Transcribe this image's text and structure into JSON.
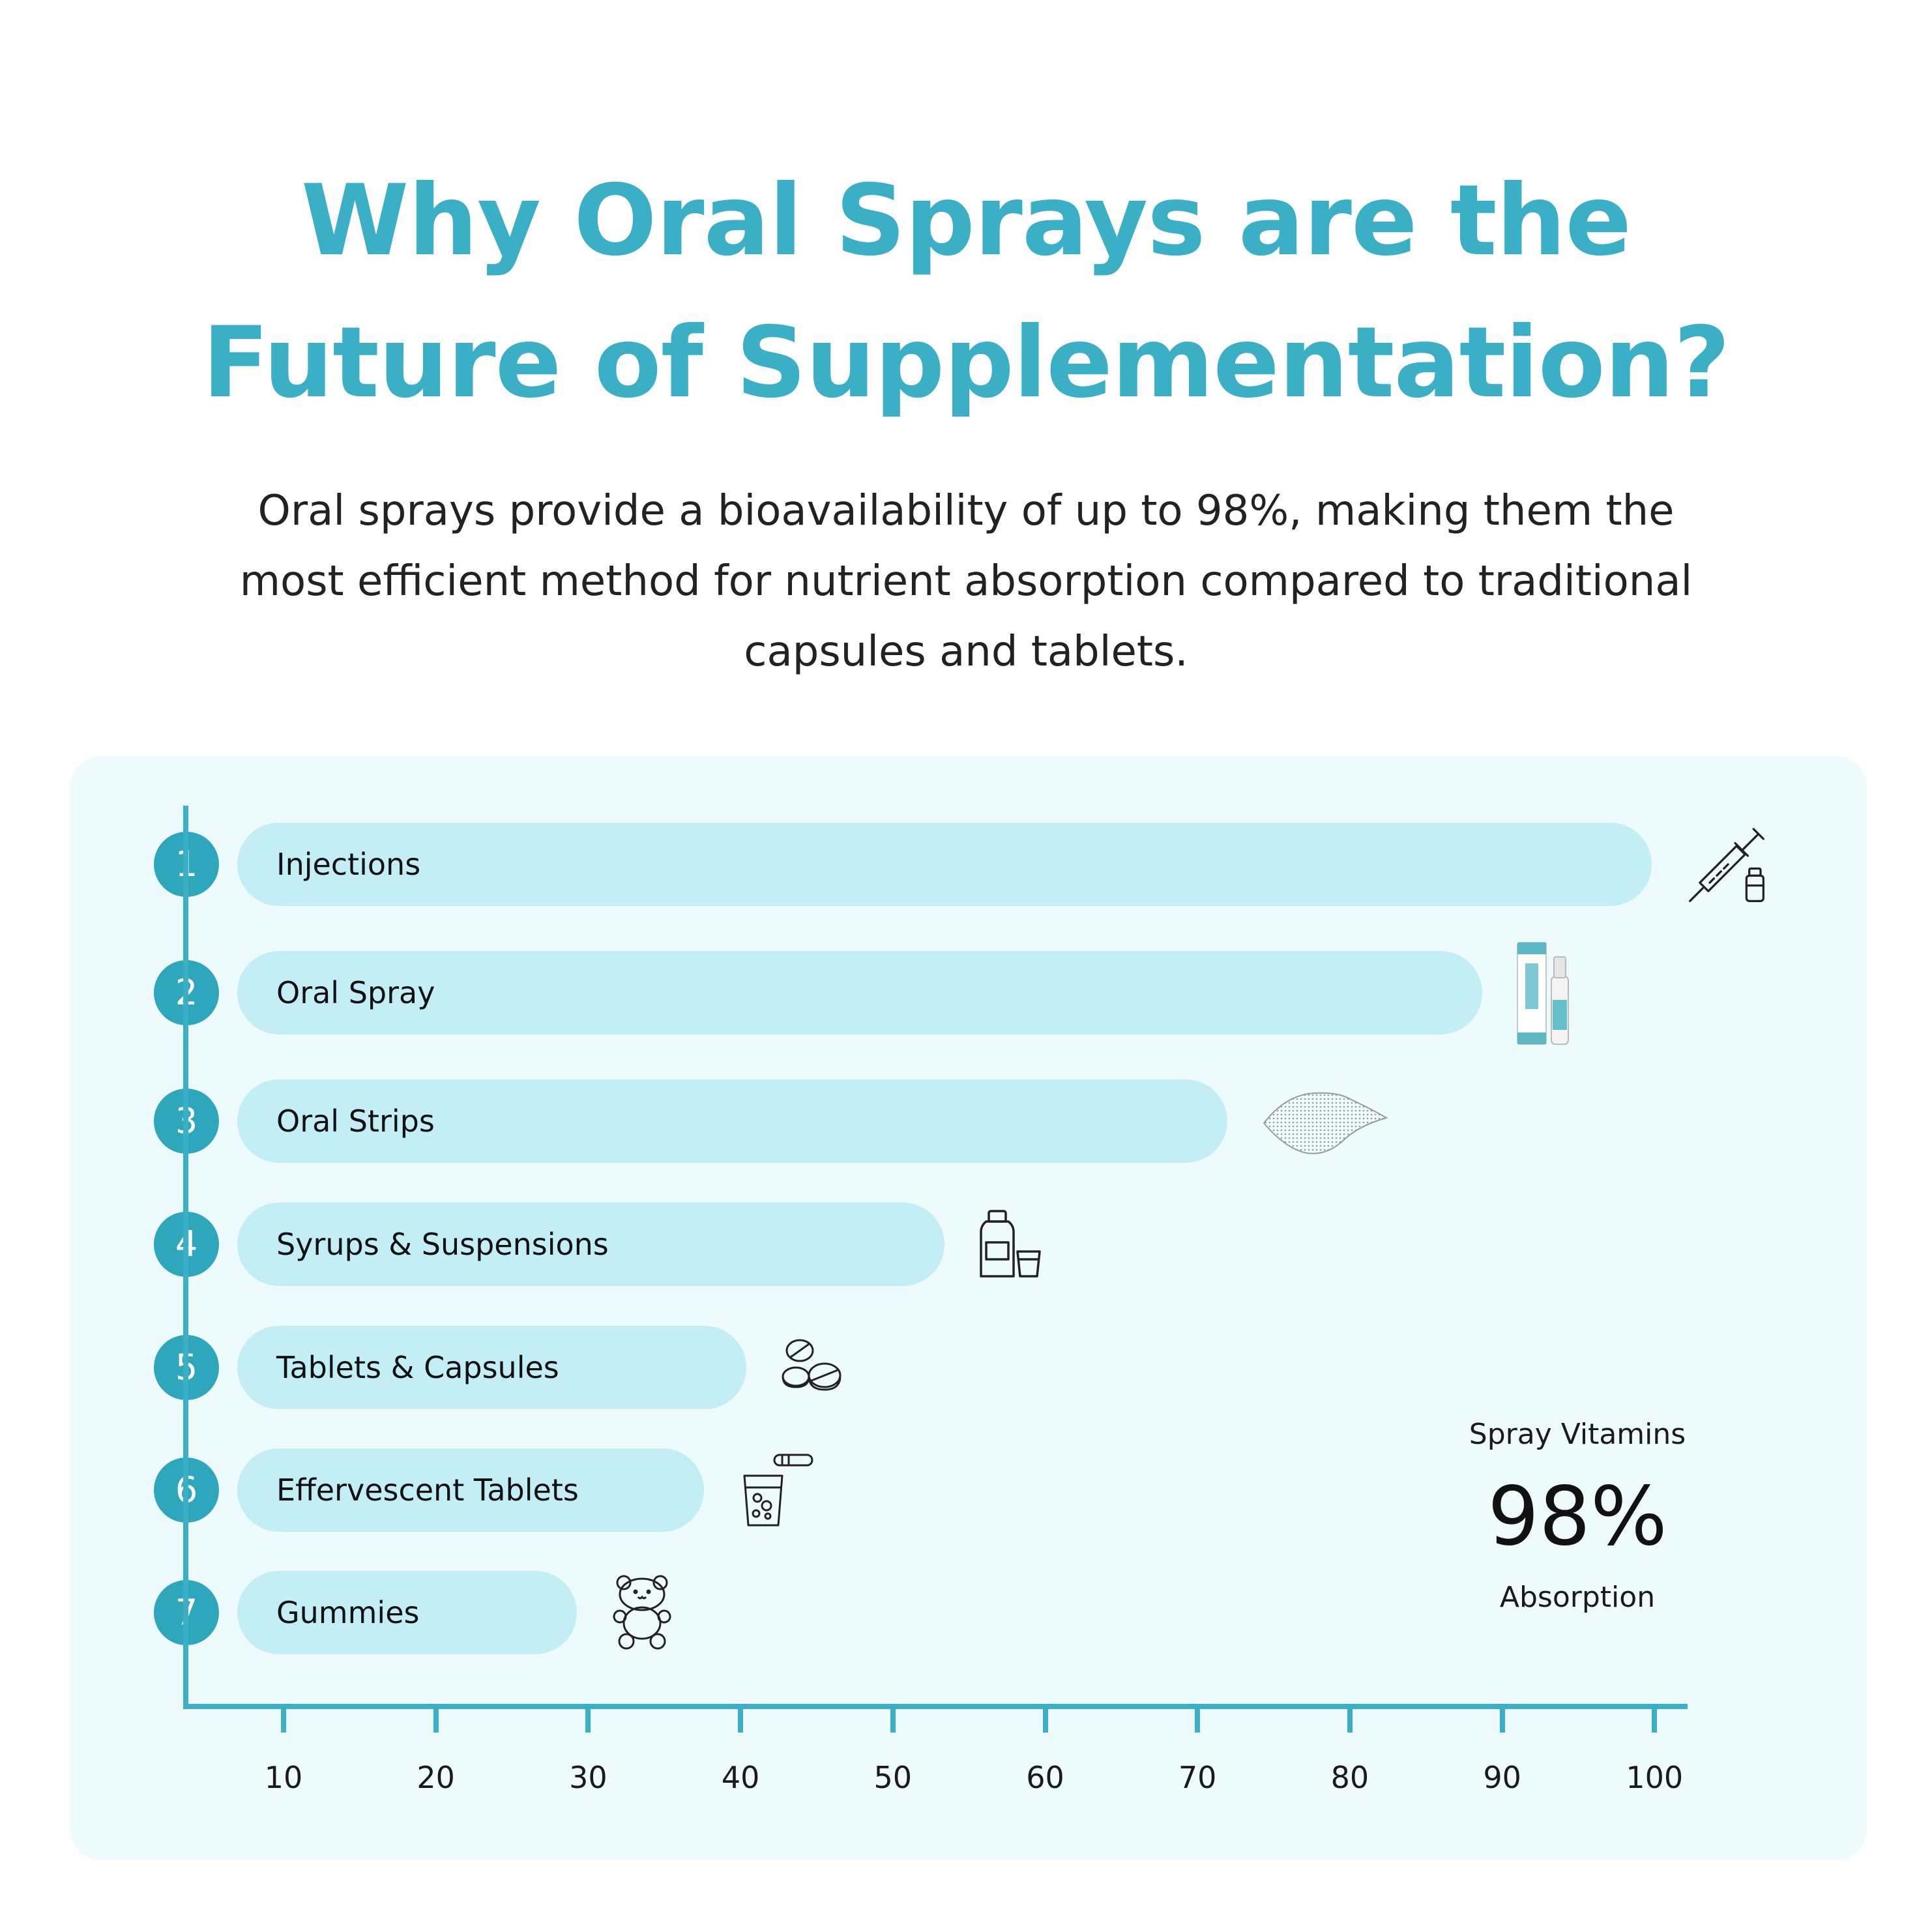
{
  "header": {
    "title_line1": "Why Oral Sprays are the",
    "title_line2": "Future of Supplementation?",
    "subtitle_line1": "Oral sprays provide a bioavailability of up to 98%, making them the",
    "subtitle_line2": "most efficient method for nutrient absorption compared to traditional",
    "subtitle_line3": "capsules and tablets."
  },
  "callout": {
    "top": "Spray Vitamins",
    "value": "98%",
    "bottom": "Absorption"
  },
  "colors": {
    "accent": "#3aafc6",
    "rank_badge": "#2ea7bd",
    "bar": "#c3eef5",
    "panel": "#eefbfd"
  },
  "chart_data": {
    "type": "bar",
    "orientation": "horizontal",
    "categories": [
      "Injections",
      "Oral Spray",
      "Oral Strips",
      "Syrups & Suspensions",
      "Tablets & Capsules",
      "Effervescent Tablets",
      "Gummies"
    ],
    "ranks": [
      "1",
      "2",
      "3",
      "4",
      "5",
      "6",
      "7"
    ],
    "values": [
      100,
      88,
      70,
      50,
      36,
      33,
      24
    ],
    "icons": [
      "syringe-icon",
      "spray-bottle-icon",
      "oral-strip-icon",
      "syrup-bottle-icon",
      "tablets-icon",
      "effervescent-glass-icon",
      "gummy-bear-icon"
    ],
    "xticks": [
      10,
      20,
      30,
      40,
      50,
      60,
      70,
      80,
      90,
      100
    ],
    "xlim": [
      0,
      100
    ],
    "title": "",
    "xlabel": "",
    "ylabel": "",
    "grid": false,
    "legend": "none"
  }
}
